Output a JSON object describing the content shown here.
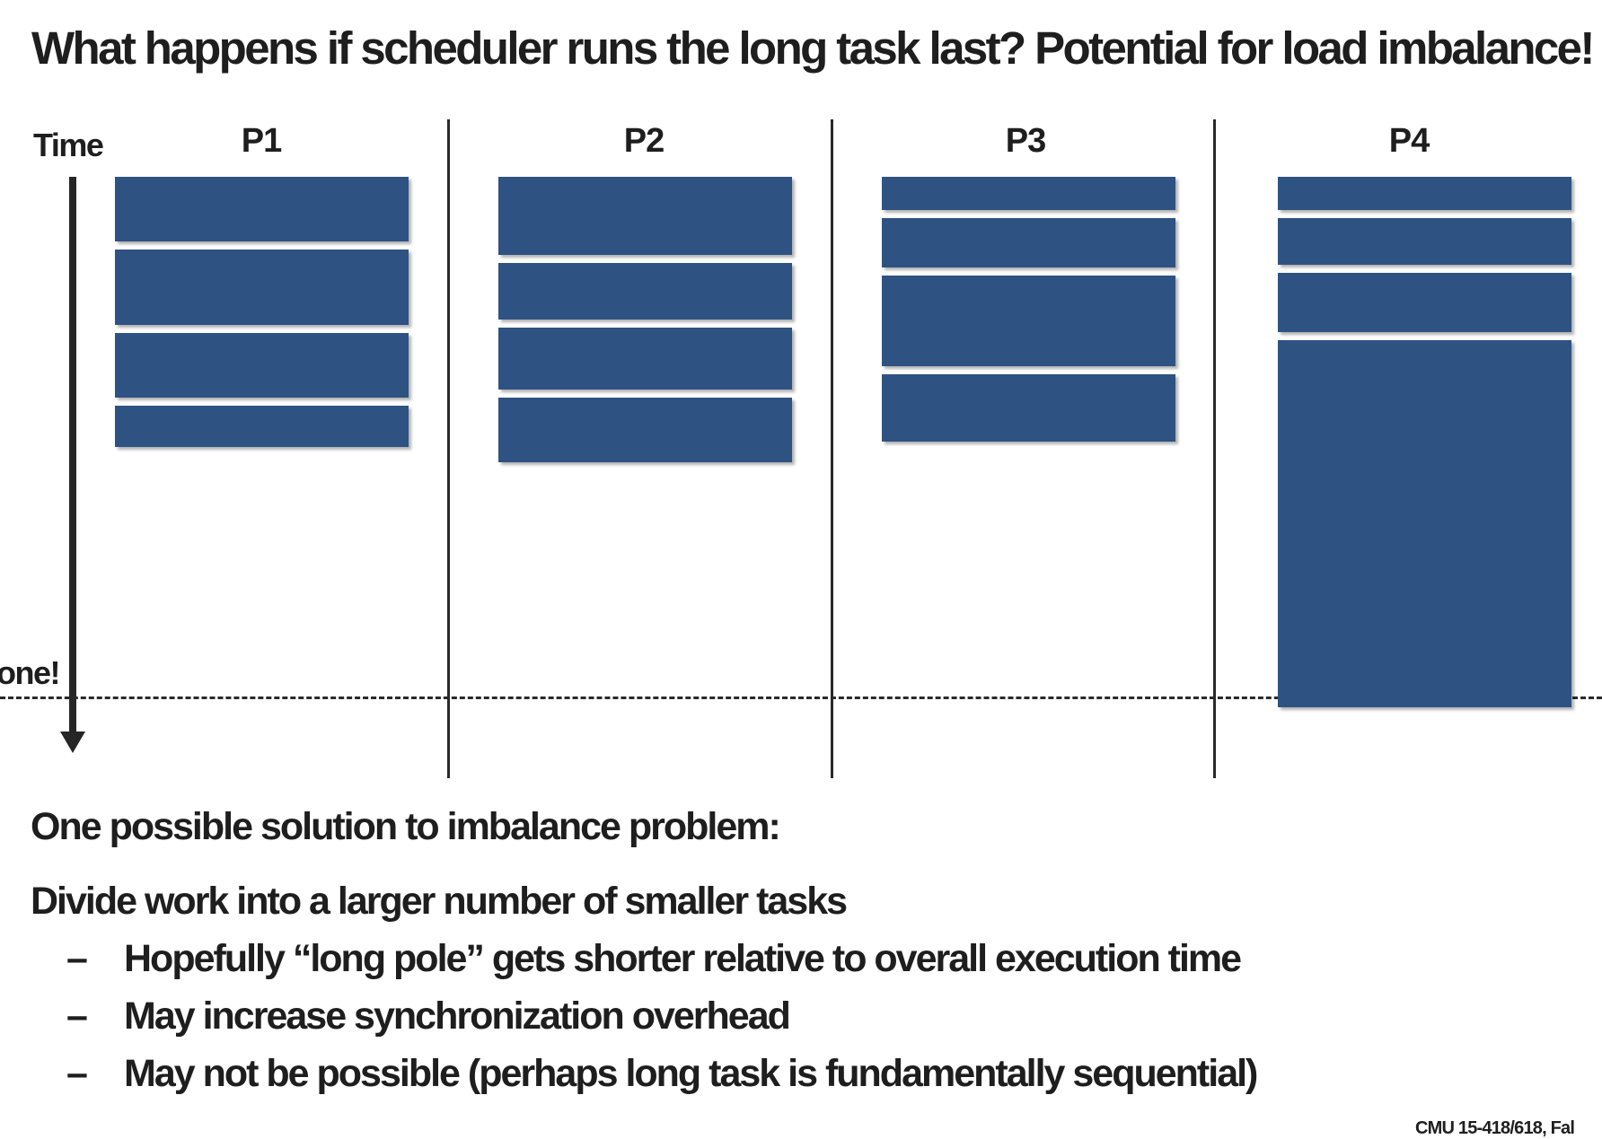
{
  "title": "What happens if scheduler runs the long task last?  Potential for load imbalance!",
  "timeline": {
    "time_label": "Time",
    "done_label": "one!"
  },
  "processors": [
    {
      "label": "P1",
      "tasks": [
        0.14,
        0.16,
        0.14,
        0.08
      ]
    },
    {
      "label": "P2",
      "tasks": [
        0.165,
        0.125,
        0.135,
        0.125
      ]
    },
    {
      "label": "P3",
      "tasks": [
        0.08,
        0.11,
        0.19,
        0.13
      ]
    },
    {
      "label": "P4",
      "tasks": [
        0.08,
        0.105,
        0.13,
        0.705
      ]
    }
  ],
  "text": {
    "solution_heading": "One possible solution to imbalance problem:",
    "point": "Divide work into a larger number of smaller tasks",
    "bullets": [
      "Hopefully “long pole” gets shorter relative to overall execution time",
      "May increase synchronization overhead",
      "May not be possible (perhaps long task is fundamentally sequential)"
    ]
  },
  "footer": "CMU 15-418/618, Fal"
}
